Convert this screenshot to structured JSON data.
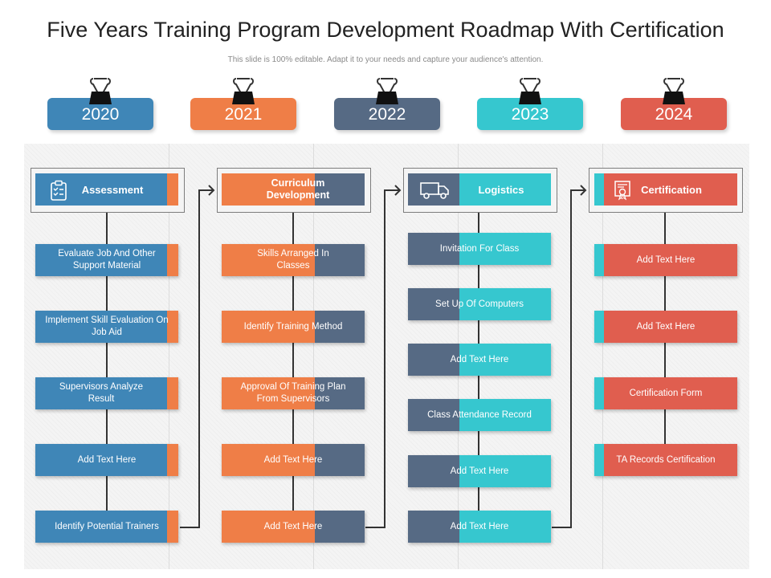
{
  "title": "Five Years Training Program Development Roadmap With Certification",
  "subtitle": "This slide is 100% editable. Adapt it to your needs and capture your audience's attention.",
  "colors": {
    "blue": "#3f86b7",
    "orange": "#ef7e47",
    "slate": "#566a84",
    "teal": "#36c7cf",
    "red": "#e05e4f"
  },
  "years": [
    "2020",
    "2021",
    "2022",
    "2023",
    "2024"
  ],
  "columns": [
    {
      "header": "Assessment",
      "icon": "clipboard-checklist-icon",
      "items": [
        "Evaluate Job And Other Support Material",
        "Implement Skill Evaluation On Job Aid",
        "Supervisors Analyze Result",
        "Add Text Here",
        "Identify Potential Trainers"
      ]
    },
    {
      "header": "Curriculum Development",
      "icon": "",
      "items": [
        "Skills Arranged In Classes",
        "Identify Training Method",
        "Approval Of Training Plan From Supervisors",
        "Add Text Here",
        "Add Text Here"
      ]
    },
    {
      "header": "Logistics",
      "icon": "truck-icon",
      "items": [
        "Invitation For Class",
        "Set Up Of Computers",
        "Add Text Here",
        "Class Attendance Record",
        "Add Text Here",
        "Add Text Here"
      ]
    },
    {
      "header": "Certification",
      "icon": "certificate-icon",
      "items": [
        "Add Text Here",
        "Add Text Here",
        "Certification Form",
        "TA Records Certification"
      ]
    }
  ]
}
